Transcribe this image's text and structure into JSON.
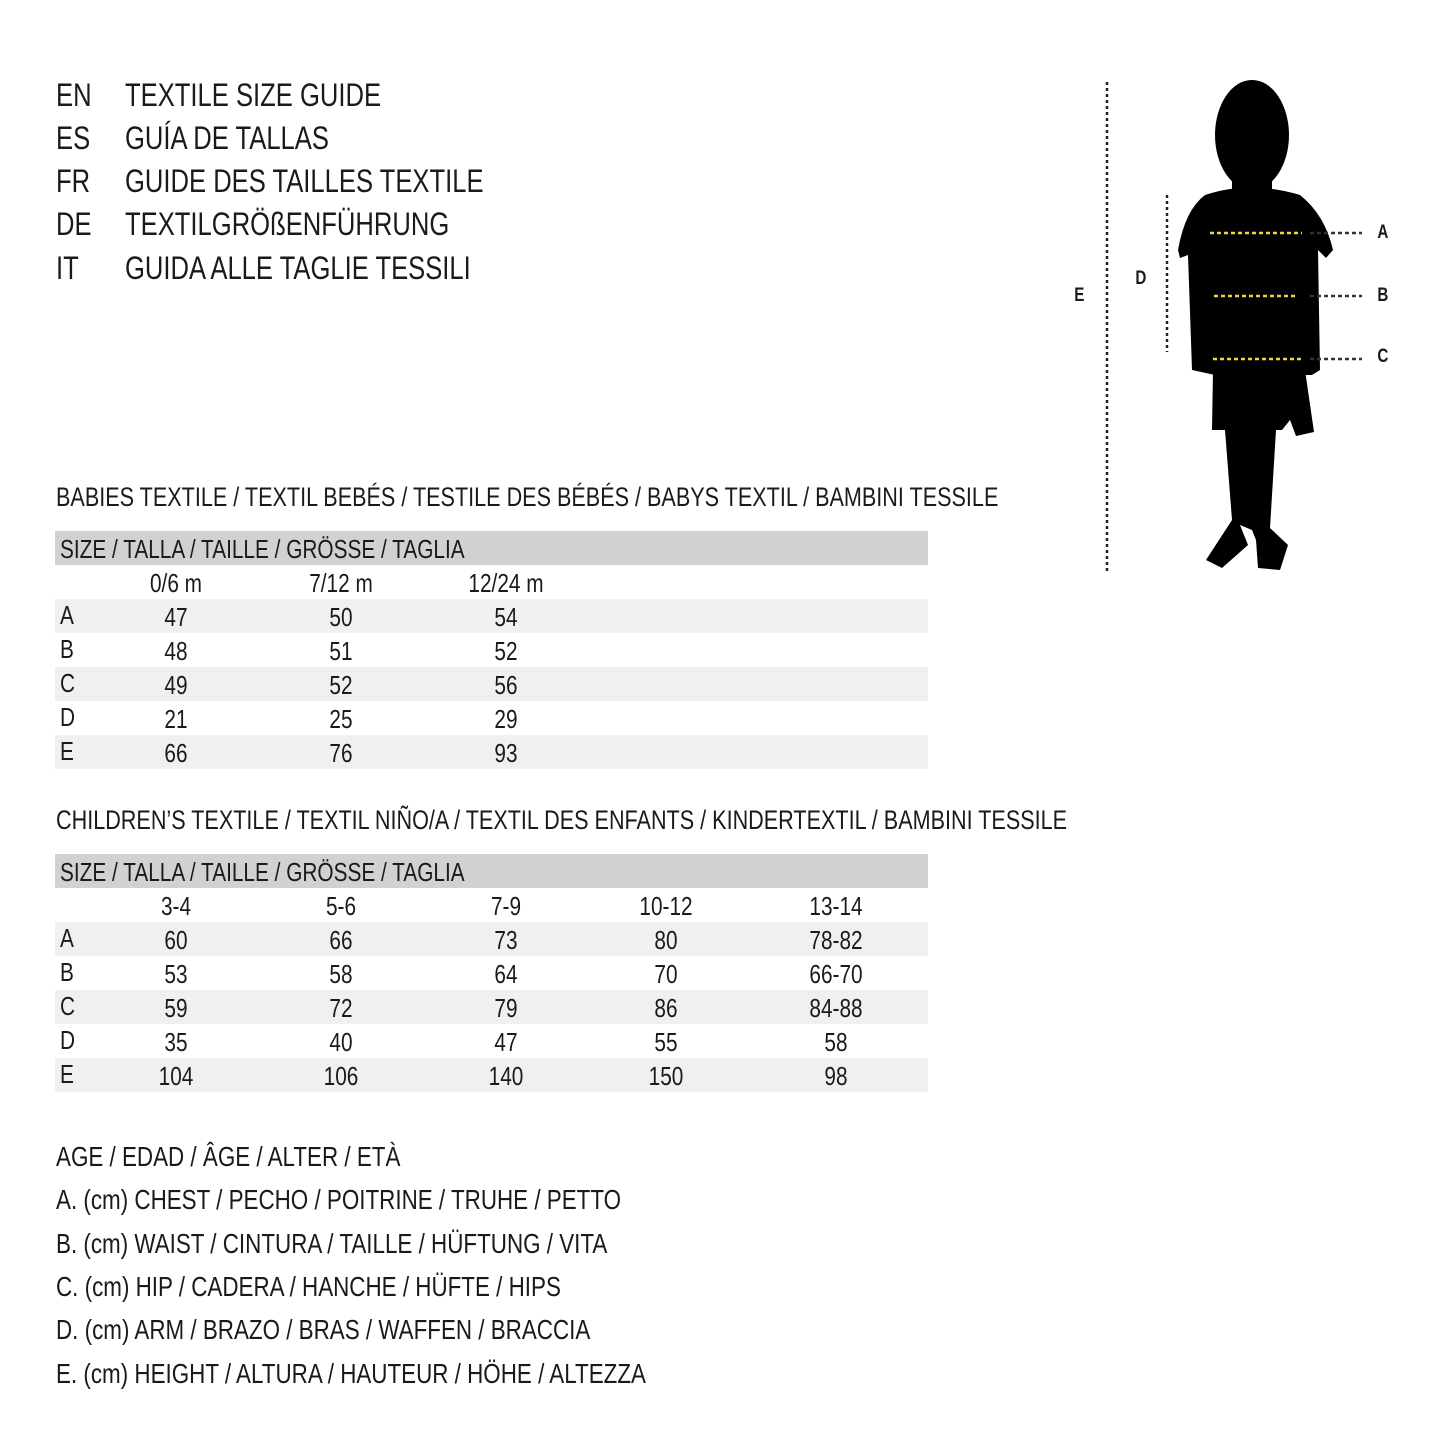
{
  "header": {
    "lines": [
      {
        "code": "EN",
        "text": "TEXTILE SIZE GUIDE"
      },
      {
        "code": "ES",
        "text": "GUÍA DE TALLAS"
      },
      {
        "code": "FR",
        "text": "GUIDE DES TAILLES TEXTILE"
      },
      {
        "code": "DE",
        "text": "TEXTILGRÖßENFÜHRUNG"
      },
      {
        "code": "IT",
        "text": "GUIDA ALLE TAGLIE TESSILI"
      }
    ]
  },
  "figure": {
    "labels": {
      "a": "A",
      "b": "B",
      "c": "C",
      "d": "D",
      "e": "E"
    },
    "accent": "#e8d838"
  },
  "babies": {
    "title": "BABIES TEXTILE / TEXTIL BEBÉS / TESTILE DES BÉBÉS / BABYS TEXTIL / BAMBINI TESSILE",
    "size_header": "SIZE / TALLA / TAILLE / GRÖSSE / TAGLIA",
    "columns": [
      "0/6 m",
      "7/12 m",
      "12/24 m"
    ],
    "rows": [
      {
        "label": "A",
        "values": [
          "47",
          "50",
          "54"
        ]
      },
      {
        "label": "B",
        "values": [
          "48",
          "51",
          "52"
        ]
      },
      {
        "label": "C",
        "values": [
          "49",
          "52",
          "56"
        ]
      },
      {
        "label": "D",
        "values": [
          "21",
          "25",
          "29"
        ]
      },
      {
        "label": "E",
        "values": [
          "66",
          "76",
          "93"
        ]
      }
    ]
  },
  "children": {
    "title": "CHILDREN’S TEXTILE / TEXTIL NIÑO/A / TEXTIL DES ENFANTS / KINDERTEXTIL / BAMBINI TESSILE",
    "size_header": "SIZE / TALLA / TAILLE / GRÖSSE / TAGLIA",
    "columns": [
      "3-4",
      "5-6",
      "7-9",
      "10-12",
      "13-14"
    ],
    "rows": [
      {
        "label": "A",
        "values": [
          "60",
          "66",
          "73",
          "80",
          "78-82"
        ]
      },
      {
        "label": "B",
        "values": [
          "53",
          "58",
          "64",
          "70",
          "66-70"
        ]
      },
      {
        "label": "C",
        "values": [
          "59",
          "72",
          "79",
          "86",
          "84-88"
        ]
      },
      {
        "label": "D",
        "values": [
          "35",
          "40",
          "47",
          "55",
          "58"
        ]
      },
      {
        "label": "E",
        "values": [
          "104",
          "106",
          "140",
          "150",
          "98"
        ]
      }
    ]
  },
  "legend": [
    "AGE / EDAD / ÂGE / ALTER / ETÀ",
    "A. (cm) CHEST / PECHO / POITRINE / TRUHE / PETTO",
    "B. (cm) WAIST / CINTURA / TAILLE / HÜFTUNG / VITA",
    "C. (cm) HIP / CADERA / HANCHE / HÜFTE / HIPS",
    "D. (cm) ARM / BRAZO / BRAS / WAFFEN / BRACCIA",
    "E. (cm) HEIGHT / ALTURA / HAUTEUR / HÖHE / ALTEZZA"
  ]
}
